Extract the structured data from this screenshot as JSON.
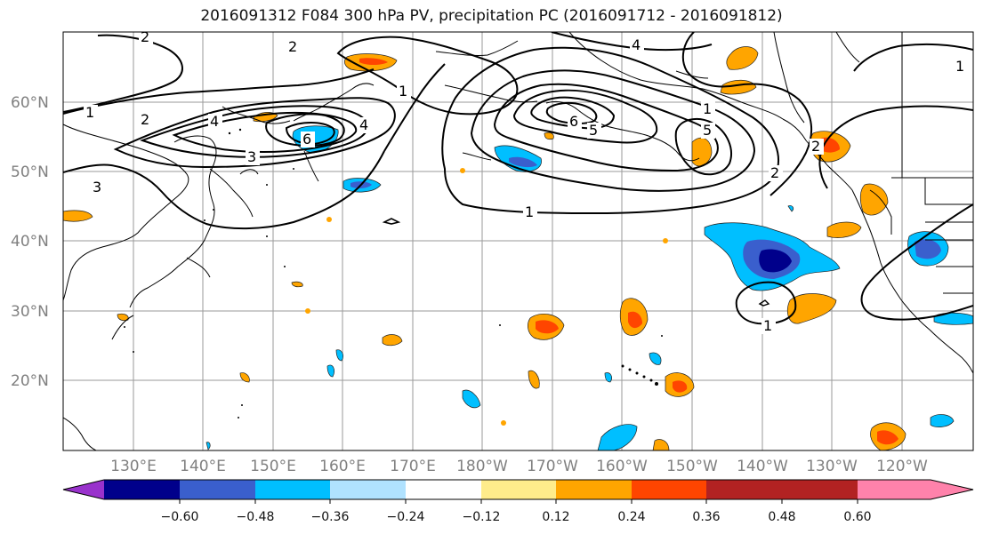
{
  "title": "2016091312 F084 300 hPa PV, precipitation PC (2016091712 - 2016091812)",
  "lat_labels": [
    "60°N",
    "50°N",
    "40°N",
    "30°N",
    "20°N"
  ],
  "lon_labels": [
    "130°E",
    "140°E",
    "150°E",
    "160°E",
    "170°E",
    "180°W",
    "170°W",
    "160°W",
    "150°W",
    "140°W",
    "130°W",
    "120°W"
  ],
  "colorbar": {
    "colors": [
      "#9932cc",
      "#00008b",
      "#3a5fcd",
      "#00bfff",
      "#b0e2ff",
      "#ffffff",
      "#ffec8b",
      "#ffa500",
      "#ff4500",
      "#b22222",
      "#ff82ab"
    ],
    "tick_labels": [
      "−0.60",
      "−0.48",
      "−0.36",
      "−0.24",
      "−0.12",
      "0.12",
      "0.24",
      "0.36",
      "0.48",
      "0.60"
    ]
  },
  "contour_labels": [
    "2",
    "2",
    "4",
    "1",
    "1",
    "2",
    "4",
    "6",
    "3",
    "3",
    "1",
    "1",
    "6",
    "5",
    "5",
    "4",
    "2",
    "1",
    "2",
    "1"
  ]
}
